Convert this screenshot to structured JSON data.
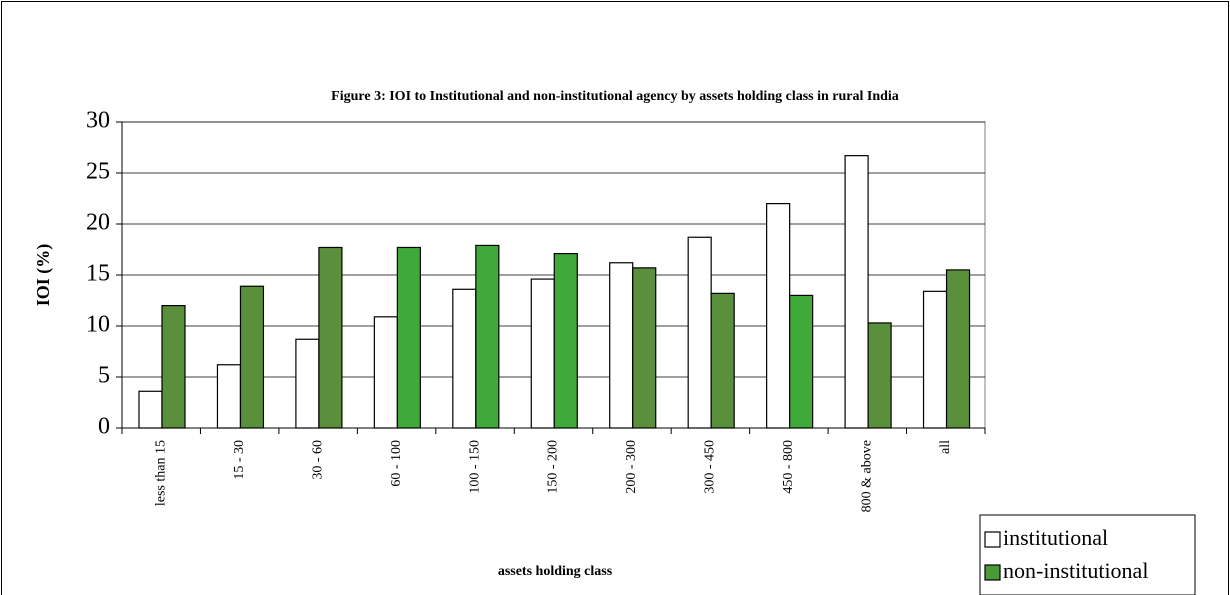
{
  "chart_data": {
    "type": "bar",
    "title": "Figure 3: IOI to Institutional and non-institutional agency by assets holding class in rural India",
    "x_label": "assets holding class",
    "y_label": "IOI (%)",
    "categories": [
      "less than 15",
      "15  - 30",
      "30  - 60",
      "60  - 100",
      "100 - 150",
      "150 - 200",
      "200 - 300",
      "300 - 450",
      "450 - 800",
      "800  &  above",
      "all"
    ],
    "series": [
      {
        "name": "institutional",
        "color": "#ffffff",
        "values": [
          3.6,
          6.2,
          8.7,
          10.9,
          13.6,
          14.6,
          16.2,
          18.7,
          22.0,
          26.7,
          13.4
        ]
      },
      {
        "name": "non-institutional",
        "color": "#4b9a3a",
        "colors": [
          "#5a8f3c",
          "#5a8f3c",
          "#5a8f3c",
          "#3faa3a",
          "#3faa3a",
          "#3faa3a",
          "#5a8f3c",
          "#5a8f3c",
          "#3faa3a",
          "#5a8f3c",
          "#5a8f3c"
        ],
        "values": [
          12.0,
          13.9,
          17.7,
          17.7,
          17.9,
          17.1,
          15.7,
          13.2,
          13.0,
          10.3,
          15.5
        ]
      }
    ],
    "ylim": [
      0,
      30
    ],
    "yticks": [
      0,
      5,
      10,
      15,
      20,
      25,
      30
    ],
    "grid": true,
    "legend": "bottom-right"
  }
}
